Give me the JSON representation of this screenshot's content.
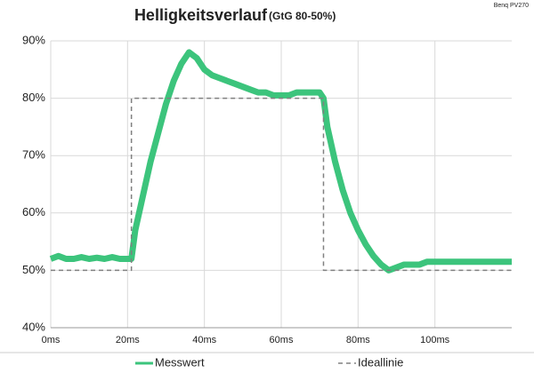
{
  "chart_data": {
    "type": "line",
    "title": "Helligkeitsverlauf",
    "subtitle": "(GtG 80-50%)",
    "annotation": "Benq PV270",
    "xlim": [
      0,
      120
    ],
    "ylim": [
      40,
      90
    ],
    "grid": true,
    "xticks": [
      {
        "value": 0,
        "label": "0ms"
      },
      {
        "value": 20,
        "label": "20ms"
      },
      {
        "value": 40,
        "label": "40ms"
      },
      {
        "value": 60,
        "label": "60ms"
      },
      {
        "value": 80,
        "label": "80ms"
      },
      {
        "value": 100,
        "label": "100ms"
      }
    ],
    "yticks": [
      {
        "value": 40,
        "label": "40%"
      },
      {
        "value": 50,
        "label": "50%"
      },
      {
        "value": 60,
        "label": "60%"
      },
      {
        "value": 70,
        "label": "70%"
      },
      {
        "value": 80,
        "label": "80%"
      },
      {
        "value": 90,
        "label": "90%"
      }
    ],
    "series": [
      {
        "name": "Messwert",
        "color": "#3cc47c",
        "dashed": false,
        "x": [
          0,
          2,
          4,
          6,
          8,
          10,
          12,
          14,
          16,
          18,
          20,
          21,
          22,
          24,
          26,
          28,
          30,
          32,
          34,
          36,
          38,
          40,
          42,
          44,
          46,
          48,
          50,
          52,
          54,
          56,
          58,
          60,
          62,
          64,
          66,
          68,
          70,
          71,
          72,
          74,
          76,
          78,
          80,
          82,
          84,
          86,
          88,
          90,
          92,
          94,
          96,
          98,
          100,
          102,
          104,
          106,
          108,
          110,
          112,
          114,
          116,
          118,
          120
        ],
        "values": [
          52,
          52.5,
          52,
          52,
          52.3,
          52,
          52.2,
          52,
          52.3,
          52,
          52,
          52,
          57,
          63,
          69,
          74,
          79,
          83,
          86,
          88,
          87,
          85,
          84,
          83.5,
          83,
          82.5,
          82,
          81.5,
          81,
          81,
          80.5,
          80.5,
          80.5,
          81,
          81,
          81,
          81,
          80,
          75,
          69,
          64,
          60,
          57,
          54.5,
          52.5,
          51,
          50,
          50.5,
          51,
          51,
          51,
          51.5,
          51.5,
          51.5,
          51.5,
          51.5,
          51.5,
          51.5,
          51.5,
          51.5,
          51.5,
          51.5,
          51.5
        ]
      },
      {
        "name": "Ideallinie",
        "color": "#808080",
        "dashed": true,
        "x": [
          0,
          21,
          21,
          71,
          71,
          120
        ],
        "values": [
          50,
          50,
          80,
          80,
          50,
          50
        ]
      }
    ]
  }
}
